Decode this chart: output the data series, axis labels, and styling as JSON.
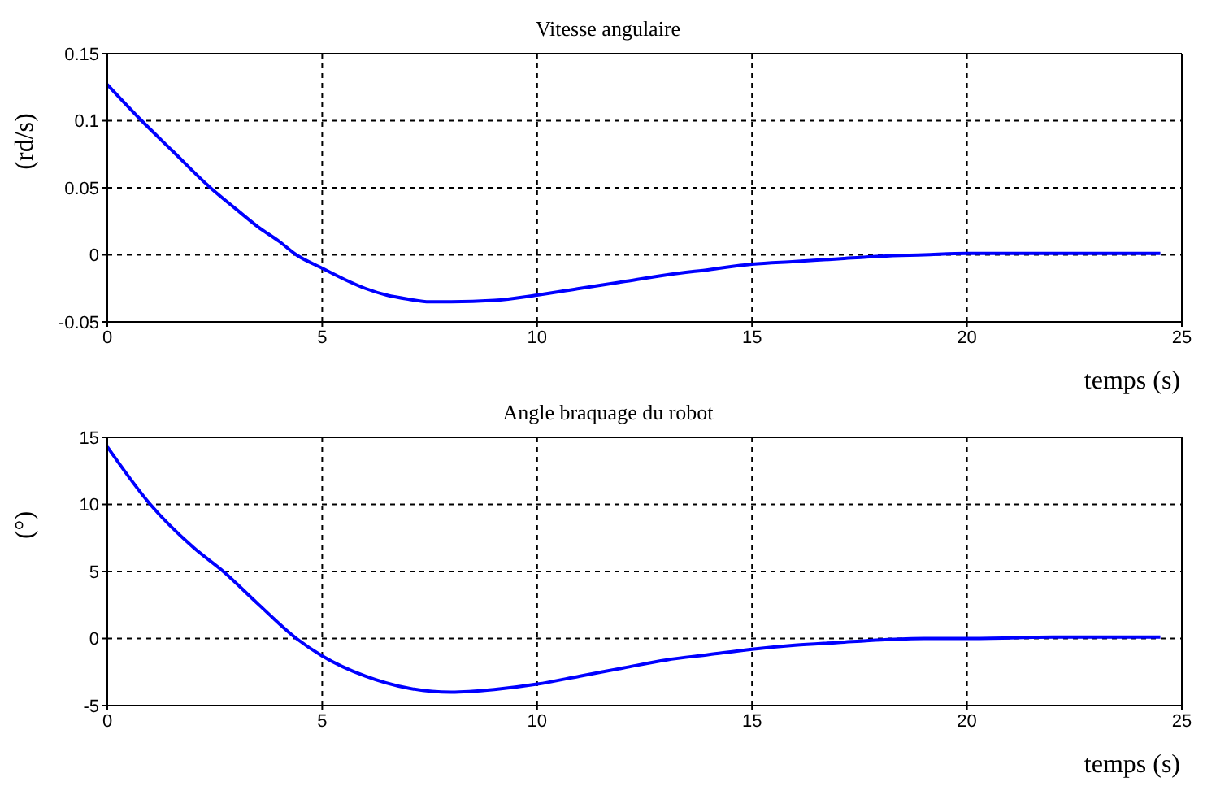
{
  "chart_data": [
    {
      "type": "line",
      "title": "Vitesse angulaire",
      "xlabel": "temps (s)",
      "ylabel": "(rd/s)",
      "xlim": [
        0,
        25
      ],
      "xticks": [
        0,
        5,
        10,
        15,
        20,
        25
      ],
      "ylim": [
        -0.05,
        0.15
      ],
      "yticks": [
        -0.05,
        0,
        0.05,
        0.1,
        0.15
      ],
      "grid": true,
      "series": [
        {
          "color": "#0000ff",
          "x": [
            0,
            0.8,
            1.5,
            2.4,
            3,
            3.5,
            4,
            4.4,
            5,
            5.5,
            6,
            6.5,
            7,
            7.5,
            8,
            9,
            10,
            11,
            12,
            13,
            14,
            15,
            16,
            17,
            18,
            19,
            20,
            22,
            24.5
          ],
          "values": [
            0.127,
            0.1,
            0.078,
            0.05,
            0.034,
            0.021,
            0.01,
            0,
            -0.01,
            -0.018,
            -0.025,
            -0.03,
            -0.033,
            -0.035,
            -0.035,
            -0.034,
            -0.03,
            -0.025,
            -0.02,
            -0.015,
            -0.011,
            -0.007,
            -0.005,
            -0.003,
            -0.001,
            0,
            0.001,
            0.001,
            0.001
          ]
        }
      ]
    },
    {
      "type": "line",
      "title": "Angle braquage du robot",
      "xlabel": "temps (s)",
      "ylabel": "(°)",
      "xlim": [
        0,
        25
      ],
      "xticks": [
        0,
        5,
        10,
        15,
        20,
        25
      ],
      "ylim": [
        -5,
        15
      ],
      "yticks": [
        -5,
        0,
        5,
        10,
        15
      ],
      "grid": true,
      "series": [
        {
          "color": "#0000ff",
          "x": [
            0,
            1,
            2,
            2.7,
            3.5,
            4.4,
            5,
            6,
            7,
            8,
            9,
            10,
            11,
            12,
            13,
            14,
            15,
            16,
            17,
            18,
            19,
            20,
            22,
            24.5
          ],
          "values": [
            14.3,
            10,
            6.8,
            5,
            2.6,
            0,
            -1.3,
            -2.8,
            -3.7,
            -4,
            -3.8,
            -3.4,
            -2.8,
            -2.2,
            -1.6,
            -1.2,
            -0.8,
            -0.5,
            -0.3,
            -0.1,
            0,
            0,
            0.1,
            0.1
          ]
        }
      ]
    }
  ]
}
